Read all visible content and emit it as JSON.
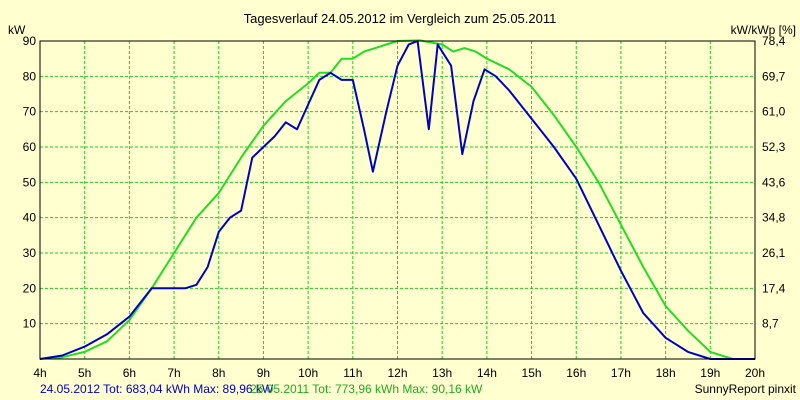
{
  "chart_data": {
    "type": "line",
    "title": "Tagesverlauf 24.05.2012 im Vergleich zum 25.05.2011",
    "ylabel_left": "kW",
    "ylabel_right": "kW/kWp [%]",
    "footer": "SunnyReport pinxit",
    "x_ticks": [
      "4h",
      "5h",
      "6h",
      "7h",
      "8h",
      "9h",
      "10h",
      "11h",
      "12h",
      "13h",
      "14h",
      "15h",
      "16h",
      "17h",
      "18h",
      "19h",
      "20h"
    ],
    "y_ticks_left": [
      "10",
      "20",
      "30",
      "40",
      "50",
      "60",
      "70",
      "80",
      "90"
    ],
    "y_ticks_right": [
      "8,7",
      "17,4",
      "26,1",
      "34,8",
      "43,6",
      "52,3",
      "61,0",
      "69,7",
      "78,4"
    ],
    "xlim": [
      4,
      20
    ],
    "ylim": [
      0,
      90
    ],
    "grid": true,
    "colors": {
      "background": "#ffffd0",
      "plot": "#ffffd0",
      "grid": "#22cc22",
      "s2012": "#0000cc",
      "s2011": "#22dd22"
    },
    "series": [
      {
        "name": "24.05.2012",
        "legend": "24.05.2012 Tot: 683,04 kWh Max: 89,96 kW",
        "color": "#0000cc",
        "x": [
          4,
          4.5,
          5,
          5.5,
          6,
          6.5,
          7,
          7.25,
          7.5,
          7.75,
          8,
          8.25,
          8.5,
          8.75,
          9,
          9.25,
          9.5,
          9.75,
          10,
          10.25,
          10.5,
          10.75,
          11,
          11.25,
          11.45,
          11.75,
          12,
          12.25,
          12.45,
          12.7,
          12.9,
          13.2,
          13.45,
          13.7,
          13.95,
          14.2,
          14.5,
          15,
          15.5,
          16,
          16.5,
          17,
          17.5,
          18,
          18.5,
          19,
          19.5,
          20
        ],
        "y": [
          0,
          1,
          3.5,
          7,
          12,
          20,
          20,
          20,
          21,
          26,
          36,
          40,
          42,
          57,
          60,
          63,
          67,
          65,
          72,
          79,
          81,
          79,
          79,
          65,
          53,
          70,
          83,
          89,
          89.96,
          65,
          89,
          83,
          58,
          73,
          82,
          80,
          76,
          68,
          60,
          51,
          38,
          25,
          13,
          6,
          2,
          0,
          0,
          0
        ]
      },
      {
        "name": "25.05.2011",
        "legend": "25.05.2011 Tot: 773,96 kWh Max: 90,16 kW",
        "color": "#22dd22",
        "x": [
          4,
          4.5,
          5,
          5.5,
          6,
          6.5,
          7,
          7.5,
          8,
          8.5,
          9,
          9.5,
          10,
          10.25,
          10.5,
          10.75,
          11,
          11.25,
          11.5,
          11.75,
          12,
          12.5,
          13,
          13.25,
          13.5,
          13.75,
          14,
          14.5,
          15,
          15.5,
          16,
          16.5,
          17,
          17.5,
          18,
          18.5,
          19,
          19.5,
          20
        ],
        "y": [
          0,
          0.5,
          2,
          5,
          11,
          20,
          30,
          40,
          47,
          57,
          66,
          73,
          78,
          81,
          81,
          85,
          85,
          87,
          88,
          89,
          90,
          90.16,
          89,
          87,
          88,
          87,
          85,
          82,
          77,
          69,
          60,
          50,
          38,
          26,
          15,
          8,
          2,
          0,
          0
        ]
      }
    ]
  }
}
